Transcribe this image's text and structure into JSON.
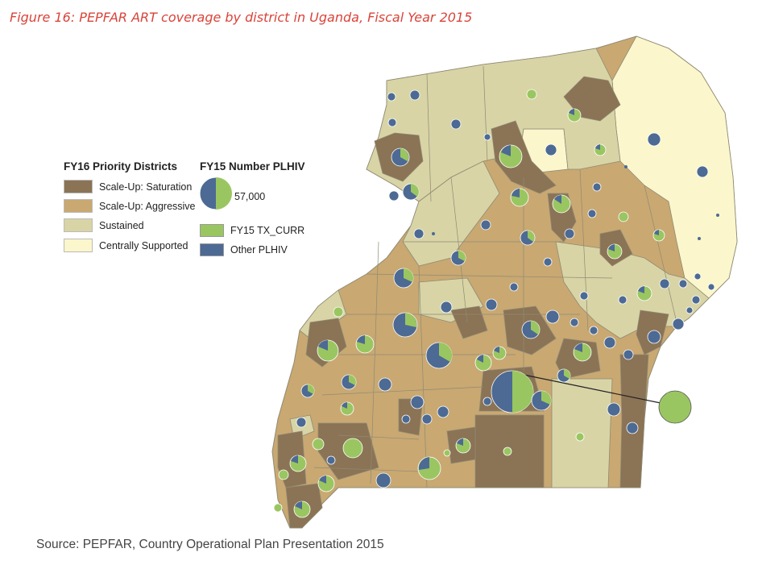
{
  "caption": "Figure 16: PEPFAR ART coverage by district in Uganda, Fiscal Year 2015",
  "source": "Source: PEPFAR, Country Operational Plan Presentation 2015",
  "legend_priority": {
    "title": "FY16 Priority Districts",
    "items": [
      {
        "label": "Scale-Up: Saturation",
        "color": "#8b7355"
      },
      {
        "label": "Scale-Up: Aggressive",
        "color": "#c9a872"
      },
      {
        "label": "Sustained",
        "color": "#d8d4a6"
      },
      {
        "label": "Centrally Supported",
        "color": "#fbf6cc"
      }
    ]
  },
  "legend_plhiv": {
    "title": "FY15 Number PLHIV",
    "example_value": "57,000",
    "items": [
      {
        "label": "FY15 TX_CURR",
        "color": "#9ac661"
      },
      {
        "label": "Other PLHIV",
        "color": "#4c6a93"
      }
    ]
  },
  "colors": {
    "border": "#8f8b73",
    "tx_curr": "#9ac661",
    "other_plhiv": "#4c6a93"
  }
}
